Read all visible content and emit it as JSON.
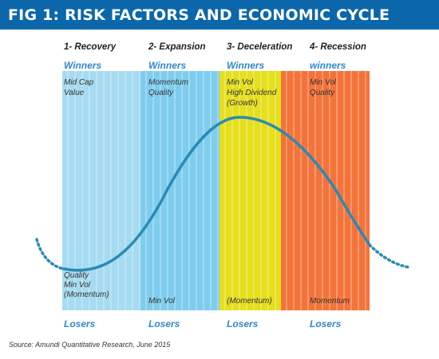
{
  "title": "FIG 1: RISK FACTORS AND ECONOMIC CYCLE",
  "phases": [
    {
      "name": "1- Recovery",
      "winners_label": "Winners",
      "winners": [
        "Mid Cap",
        "Value"
      ],
      "losers_items": [
        "Quality",
        "Min Vol",
        "(Momentum)"
      ],
      "losers_label": "Losers",
      "color": "#a6dbf1"
    },
    {
      "name": "2- Expansion",
      "winners_label": "Winners",
      "winners": [
        "Momentum",
        "Quality"
      ],
      "losers_items": [
        "Min Vol"
      ],
      "losers_label": "Losers",
      "color": "#7fcdee"
    },
    {
      "name": "3- Deceleration",
      "winners_label": "Winners",
      "winners": [
        "Min Vol",
        "High Dividend",
        "(Growth)"
      ],
      "losers_items": [
        "(Momentum)"
      ],
      "losers_label": "Losers",
      "color": "#e5df1c"
    },
    {
      "name": "4- Recession",
      "winners_label": "winners",
      "winners": [
        "Min Vol",
        "Quality"
      ],
      "losers_items": [
        "Momentum"
      ],
      "losers_label": "Losers",
      "color": "#f4733a"
    }
  ],
  "curve_color": "#2a8bb5",
  "source": "Source: Amundi Quantitative Research, June 2015"
}
